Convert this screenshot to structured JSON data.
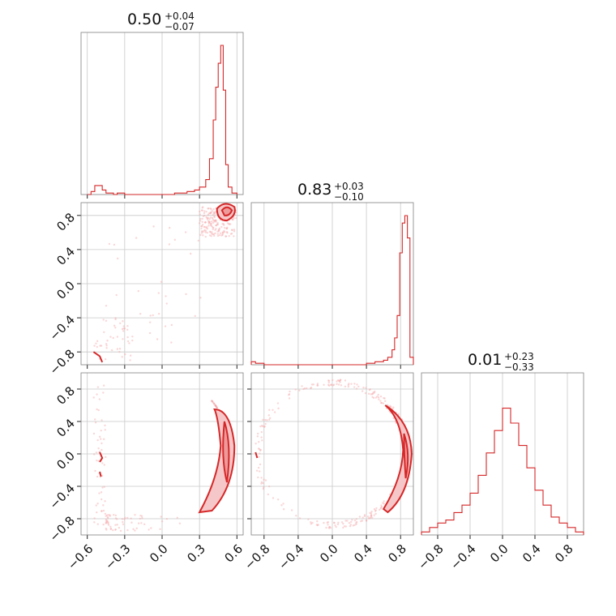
{
  "colors": {
    "accent": "#d62728",
    "grid": "#c8c8c8",
    "frame": "#7f7f7f"
  },
  "chart_data": {
    "type": "corner",
    "variables": 3,
    "titles": [
      {
        "value": "0.50",
        "plus": "+0.04",
        "minus": "−0.07"
      },
      {
        "value": "0.83",
        "plus": "+0.03",
        "minus": "−0.10"
      },
      {
        "value": "0.01",
        "plus": "+0.23",
        "minus": "−0.33"
      }
    ],
    "ranges": [
      [
        -0.65,
        0.65
      ],
      [
        -0.95,
        0.95
      ],
      [
        -1.0,
        1.0
      ]
    ],
    "ticks": {
      "x1": [
        "−0.6",
        "−0.3",
        "0.0",
        "0.3",
        "0.6"
      ],
      "x1_values": [
        -0.6,
        -0.3,
        0.0,
        0.3,
        0.6
      ],
      "x2": [
        "−0.8",
        "−0.4",
        "0.0",
        "0.4",
        "0.8"
      ],
      "x2_values": [
        -0.8,
        -0.4,
        0.0,
        0.4,
        0.8
      ],
      "x3": [
        "−0.8",
        "−0.4",
        "0.0",
        "0.4",
        "0.8"
      ],
      "x3_values": [
        -0.8,
        -0.4,
        0.0,
        0.4,
        0.8
      ],
      "y2": [
        "0.8",
        "0.4",
        "0.0",
        "−0.4",
        "−0.8"
      ],
      "y2_values": [
        0.8,
        0.4,
        0.0,
        -0.4,
        -0.8
      ],
      "y3": [
        "0.8",
        "0.4",
        "0.0",
        "−0.4",
        "−0.8"
      ],
      "y3_values": [
        0.8,
        0.4,
        0.0,
        -0.4,
        -0.8
      ]
    },
    "histograms": [
      {
        "var": 1,
        "bins": [
          -0.6,
          -0.57,
          -0.54,
          -0.51,
          -0.48,
          -0.45,
          -0.42,
          -0.39,
          -0.36,
          -0.3,
          -0.2,
          -0.1,
          0.0,
          0.1,
          0.2,
          0.26,
          0.3,
          0.35,
          0.38,
          0.41,
          0.43,
          0.45,
          0.47,
          0.49,
          0.51,
          0.53,
          0.56,
          0.6
        ],
        "heights": [
          0.0,
          0.02,
          0.06,
          0.06,
          0.03,
          0.01,
          0.01,
          0.0,
          0.01,
          0.0,
          0.0,
          0.0,
          0.0,
          0.01,
          0.02,
          0.03,
          0.05,
          0.1,
          0.24,
          0.5,
          0.72,
          0.88,
          1.0,
          0.7,
          0.2,
          0.05,
          0.01
        ]
      },
      {
        "var": 2,
        "bins": [
          -0.95,
          -0.9,
          -0.85,
          -0.8,
          -0.6,
          -0.4,
          -0.2,
          0.0,
          0.2,
          0.4,
          0.5,
          0.6,
          0.65,
          0.7,
          0.73,
          0.76,
          0.79,
          0.82,
          0.85,
          0.88,
          0.91,
          0.95
        ],
        "heights": [
          0.02,
          0.01,
          0.01,
          0.0,
          0.0,
          0.0,
          0.0,
          0.0,
          0.0,
          0.01,
          0.02,
          0.03,
          0.05,
          0.1,
          0.18,
          0.33,
          0.75,
          0.95,
          1.0,
          0.85,
          0.05
        ]
      },
      {
        "var": 3,
        "bins": [
          -1.0,
          -0.9,
          -0.8,
          -0.7,
          -0.6,
          -0.5,
          -0.4,
          -0.3,
          -0.2,
          -0.1,
          0.0,
          0.1,
          0.2,
          0.3,
          0.4,
          0.5,
          0.6,
          0.7,
          0.8,
          0.9,
          1.0
        ],
        "heights": [
          0.02,
          0.05,
          0.08,
          0.1,
          0.15,
          0.2,
          0.28,
          0.4,
          0.55,
          0.7,
          0.85,
          0.75,
          0.6,
          0.45,
          0.3,
          0.2,
          0.12,
          0.08,
          0.05,
          0.02
        ]
      }
    ]
  }
}
